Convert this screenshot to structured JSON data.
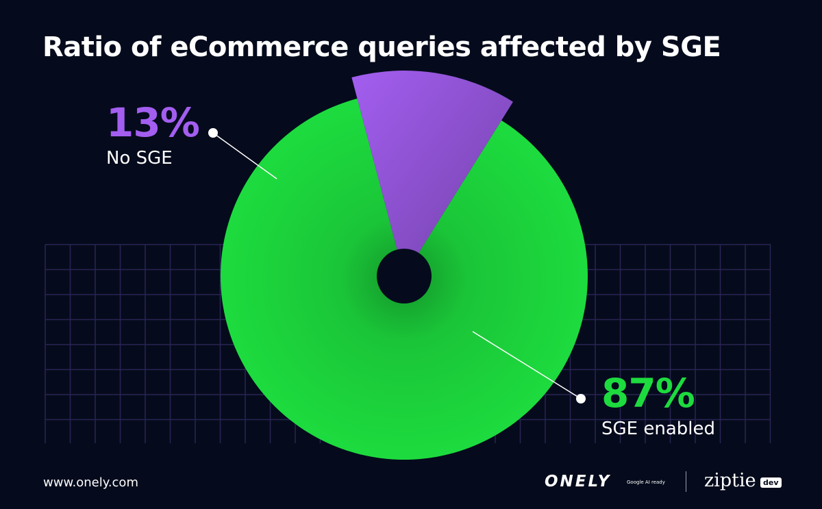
{
  "title": "Ratio of eCommerce queries affected by SGE",
  "footer": {
    "url": "www.onely.com",
    "onely_logo": "ONELY",
    "onely_tagline": "Google AI ready",
    "ziptie_logo": "ziptie",
    "ziptie_badge": "dev"
  },
  "colors": {
    "background": "#050b1c",
    "grid": "#2a2455",
    "sge_enabled": "#1ddb3e",
    "no_sge": "#a35ef0"
  },
  "chart_data": {
    "type": "pie",
    "title": "Ratio of eCommerce queries affected by SGE",
    "slices": [
      {
        "label": "No SGE",
        "value": 13,
        "display": "13%",
        "color": "#a35ef0"
      },
      {
        "label": "SGE enabled",
        "value": 87,
        "display": "87%",
        "color": "#1ddb3e"
      }
    ],
    "legend": "none",
    "data_labels": "callouts"
  }
}
